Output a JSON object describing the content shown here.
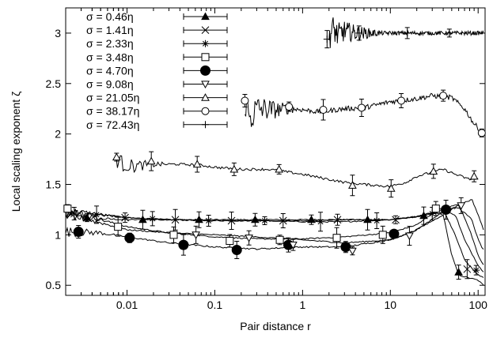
{
  "chart_data": {
    "type": "line",
    "title": "",
    "xlabel": "Pair distance r",
    "ylabel": "Local scaling exponent  ζ",
    "x_scale": "log",
    "xlim": [
      0.002,
      120
    ],
    "ylim": [
      0.4,
      3.25
    ],
    "x_ticks": [
      {
        "value": 0.01,
        "label": "0.01"
      },
      {
        "value": 0.1,
        "label": "0.1"
      },
      {
        "value": 1,
        "label": "1"
      },
      {
        "value": 10,
        "label": "10"
      },
      {
        "value": 100,
        "label": "100"
      }
    ],
    "y_ticks": [
      {
        "value": 0.5,
        "label": "0.5"
      },
      {
        "value": 1,
        "label": "1"
      },
      {
        "value": 1.5,
        "label": "1.5"
      },
      {
        "value": 2,
        "label": "2"
      },
      {
        "value": 2.5,
        "label": "2.5"
      },
      {
        "value": 3,
        "label": "3"
      }
    ],
    "grid": false,
    "legend_position": "top-left",
    "series": [
      {
        "name": "σ = 0.46η",
        "marker": "triangle-filled",
        "noise": 0.012,
        "line": [
          [
            0.002,
            1.18
          ],
          [
            0.005,
            1.16
          ],
          [
            0.01,
            1.15
          ],
          [
            0.03,
            1.15
          ],
          [
            0.1,
            1.15
          ],
          [
            0.3,
            1.15
          ],
          [
            1,
            1.15
          ],
          [
            3,
            1.15
          ],
          [
            10,
            1.15
          ],
          [
            20,
            1.18
          ],
          [
            30,
            1.22
          ],
          [
            40,
            1.2
          ],
          [
            50,
            0.8
          ],
          [
            60,
            0.6
          ],
          [
            100,
            0.55
          ],
          [
            115,
            0.5
          ]
        ],
        "markers": [
          [
            0.0035,
            1.17
          ],
          [
            0.0151,
            1.15
          ],
          [
            0.0661,
            1.15
          ],
          [
            0.288,
            1.15
          ],
          [
            1.26,
            1.15
          ],
          [
            5.5,
            1.15
          ],
          [
            24,
            1.19
          ],
          [
            60,
            0.63
          ]
        ]
      },
      {
        "name": "σ = 1.41η",
        "marker": "x",
        "noise": 0.012,
        "line": [
          [
            0.002,
            1.22
          ],
          [
            0.005,
            1.2
          ],
          [
            0.01,
            1.17
          ],
          [
            0.03,
            1.15
          ],
          [
            0.1,
            1.14
          ],
          [
            0.3,
            1.14
          ],
          [
            1,
            1.14
          ],
          [
            3,
            1.15
          ],
          [
            10,
            1.15
          ],
          [
            20,
            1.18
          ],
          [
            40,
            1.25
          ],
          [
            55,
            1.0
          ],
          [
            70,
            0.75
          ],
          [
            100,
            0.6
          ],
          [
            115,
            0.58
          ]
        ],
        "markers": [
          [
            0.0025,
            1.21
          ],
          [
            0.0095,
            1.17
          ],
          [
            0.0355,
            1.15
          ],
          [
            0.155,
            1.14
          ],
          [
            0.6,
            1.14
          ],
          [
            2.5,
            1.15
          ],
          [
            11.5,
            1.15
          ],
          [
            75,
            0.66
          ]
        ]
      },
      {
        "name": "σ = 2.33η",
        "marker": "asterisk",
        "noise": 0.012,
        "line": [
          [
            0.002,
            1.24
          ],
          [
            0.005,
            1.2
          ],
          [
            0.01,
            1.17
          ],
          [
            0.03,
            1.15
          ],
          [
            0.1,
            1.14
          ],
          [
            0.3,
            1.14
          ],
          [
            1,
            1.13
          ],
          [
            3,
            1.13
          ],
          [
            10,
            1.15
          ],
          [
            20,
            1.18
          ],
          [
            40,
            1.23
          ],
          [
            55,
            1.2
          ],
          [
            70,
            0.95
          ],
          [
            100,
            0.7
          ],
          [
            115,
            0.63
          ]
        ],
        "markers": [
          [
            0.0045,
            1.2
          ],
          [
            0.0195,
            1.16
          ],
          [
            0.085,
            1.14
          ],
          [
            0.37,
            1.14
          ],
          [
            1.6,
            1.13
          ],
          [
            7,
            1.14
          ],
          [
            30,
            1.21
          ],
          [
            95,
            0.65
          ]
        ]
      },
      {
        "name": "σ = 3.48η",
        "marker": "square",
        "noise": 0.012,
        "line": [
          [
            0.002,
            1.25
          ],
          [
            0.005,
            1.15
          ],
          [
            0.01,
            1.08
          ],
          [
            0.03,
            1.02
          ],
          [
            0.1,
            0.98
          ],
          [
            0.3,
            0.96
          ],
          [
            1,
            0.96
          ],
          [
            3,
            0.98
          ],
          [
            10,
            1.02
          ],
          [
            20,
            1.1
          ],
          [
            35,
            1.25
          ],
          [
            60,
            1.3
          ],
          [
            80,
            1.05
          ],
          [
            100,
            0.8
          ],
          [
            115,
            0.7
          ]
        ],
        "markers": [
          [
            0.0021,
            1.26
          ],
          [
            0.0079,
            1.08
          ],
          [
            0.034,
            1.0
          ],
          [
            0.148,
            0.94
          ],
          [
            0.55,
            0.95
          ],
          [
            2.45,
            0.97
          ],
          [
            8.2,
            1.0
          ],
          [
            33,
            1.26
          ]
        ]
      },
      {
        "name": "σ = 4.70η",
        "marker": "circle-filled",
        "noise": 0.015,
        "line": [
          [
            0.002,
            1.03
          ],
          [
            0.005,
            1.02
          ],
          [
            0.01,
            0.98
          ],
          [
            0.03,
            0.92
          ],
          [
            0.1,
            0.88
          ],
          [
            0.3,
            0.86
          ],
          [
            1,
            0.88
          ],
          [
            3,
            0.88
          ],
          [
            10,
            0.95
          ],
          [
            20,
            1.05
          ],
          [
            35,
            1.2
          ],
          [
            45,
            1.25
          ],
          [
            60,
            1.27
          ],
          [
            85,
            1.15
          ],
          [
            100,
            0.95
          ],
          [
            115,
            0.85
          ]
        ],
        "markers": [
          [
            0.0028,
            1.03
          ],
          [
            0.0107,
            0.97
          ],
          [
            0.044,
            0.9
          ],
          [
            0.178,
            0.85
          ],
          [
            0.69,
            0.9
          ],
          [
            3.1,
            0.88
          ],
          [
            11,
            1.01
          ],
          [
            43,
            1.25
          ]
        ]
      },
      {
        "name": "σ = 9.08η",
        "marker": "triangle-down",
        "noise": 0.012,
        "line": [
          [
            0.002,
            1.2
          ],
          [
            0.005,
            1.12
          ],
          [
            0.01,
            1.05
          ],
          [
            0.03,
            1.02
          ],
          [
            0.1,
            1.0
          ],
          [
            0.3,
            0.98
          ],
          [
            1,
            0.95
          ],
          [
            3,
            0.92
          ],
          [
            10,
            0.95
          ],
          [
            20,
            1.05
          ],
          [
            40,
            1.2
          ],
          [
            60,
            1.3
          ],
          [
            85,
            1.35
          ],
          [
            100,
            1.2
          ],
          [
            115,
            1.05
          ]
        ],
        "markers": [
          [
            0.061,
            1.0
          ],
          [
            0.245,
            0.97
          ],
          [
            0.78,
            0.9
          ],
          [
            3.7,
            0.84
          ],
          [
            16.5,
            0.99
          ],
          [
            64,
            1.29
          ]
        ]
      },
      {
        "name": "σ = 21.05η",
        "marker": "triangle",
        "noise": 0.025,
        "line": [
          [
            0.0075,
            1.76
          ],
          [
            0.009,
            1.7
          ],
          [
            0.012,
            1.68
          ],
          [
            0.02,
            1.7
          ],
          [
            0.04,
            1.7
          ],
          [
            0.07,
            1.69
          ],
          [
            0.1,
            1.67
          ],
          [
            0.2,
            1.65
          ],
          [
            0.4,
            1.65
          ],
          [
            0.6,
            1.63
          ],
          [
            1,
            1.6
          ],
          [
            2,
            1.55
          ],
          [
            3,
            1.52
          ],
          [
            5,
            1.5
          ],
          [
            10,
            1.48
          ],
          [
            15,
            1.52
          ],
          [
            20,
            1.58
          ],
          [
            30,
            1.62
          ],
          [
            40,
            1.65
          ],
          [
            55,
            1.6
          ],
          [
            80,
            1.55
          ],
          [
            100,
            1.55
          ]
        ],
        "markers": [
          [
            0.0076,
            1.77
          ],
          [
            0.0189,
            1.73
          ],
          [
            0.063,
            1.7
          ],
          [
            0.166,
            1.65
          ],
          [
            0.54,
            1.65
          ],
          [
            3.7,
            1.49
          ],
          [
            10.2,
            1.46
          ],
          [
            31,
            1.63
          ],
          [
            90,
            1.58
          ]
        ]
      },
      {
        "name": "σ = 38.17η",
        "marker": "circle",
        "noise": 0.05,
        "line": [
          [
            0.22,
            2.35
          ],
          [
            0.25,
            2.15
          ],
          [
            0.3,
            2.25
          ],
          [
            0.5,
            2.24
          ],
          [
            0.7,
            2.25
          ],
          [
            1,
            2.24
          ],
          [
            1.5,
            2.22
          ],
          [
            2,
            2.23
          ],
          [
            3,
            2.25
          ],
          [
            5,
            2.26
          ],
          [
            10,
            2.32
          ],
          [
            20,
            2.35
          ],
          [
            30,
            2.38
          ],
          [
            50,
            2.36
          ],
          [
            70,
            2.25
          ],
          [
            90,
            2.1
          ],
          [
            115,
            2.01
          ]
        ],
        "markers": [
          [
            0.22,
            2.33
          ],
          [
            0.7,
            2.27
          ],
          [
            1.72,
            2.24
          ],
          [
            4.7,
            2.26
          ],
          [
            13.3,
            2.33
          ],
          [
            40,
            2.38
          ],
          [
            110,
            2.01
          ]
        ]
      },
      {
        "name": "σ = 72.43η",
        "marker": "plus",
        "noise": 0.04,
        "line": [
          [
            2.0,
            2.96
          ],
          [
            2.2,
            3.05
          ],
          [
            2.5,
            2.98
          ],
          [
            3,
            3.02
          ],
          [
            4,
            3.0
          ],
          [
            5,
            3.0
          ],
          [
            10,
            3.0
          ],
          [
            20,
            3.0
          ],
          [
            50,
            3.0
          ],
          [
            115,
            3.0
          ]
        ],
        "markers": [
          [
            1.9,
            2.94
          ],
          [
            4.4,
            3.0
          ],
          [
            15.6,
            3.0
          ],
          [
            47,
            3.0
          ]
        ]
      }
    ]
  }
}
